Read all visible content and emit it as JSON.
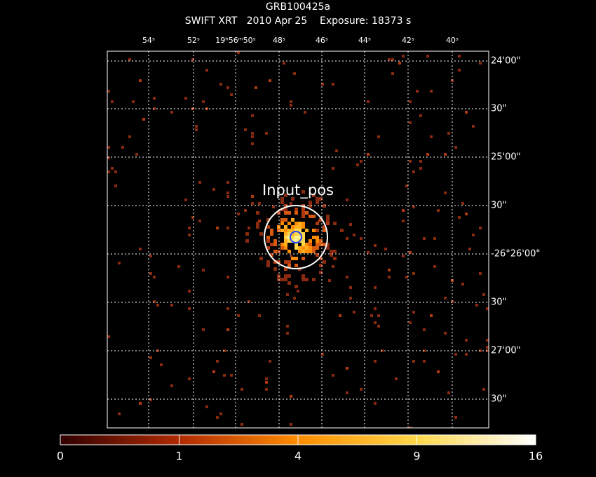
{
  "image": {
    "title": "GRB100425a",
    "subtitle": "SWIFT XRT   2010 Apr 25    Exposure: 18373 s",
    "annotation": "Input_pos",
    "ra_labels": [
      "54ˢ",
      "52ˢ",
      "19ʰ56ᵐ50ˢ",
      "48ˢ",
      "46ˢ",
      "44ˢ",
      "42ˢ",
      "40ˢ"
    ],
    "dec_labels": [
      "24'00\"",
      "30\"",
      "25'00\"",
      "30\"",
      "-26°26'00\"",
      "30\"",
      "27'00\"",
      "30\""
    ]
  },
  "colorbar": {
    "scale": "sqrt",
    "lim": [
      0,
      16
    ],
    "ticks": [
      0,
      1,
      4,
      9,
      16
    ]
  }
}
